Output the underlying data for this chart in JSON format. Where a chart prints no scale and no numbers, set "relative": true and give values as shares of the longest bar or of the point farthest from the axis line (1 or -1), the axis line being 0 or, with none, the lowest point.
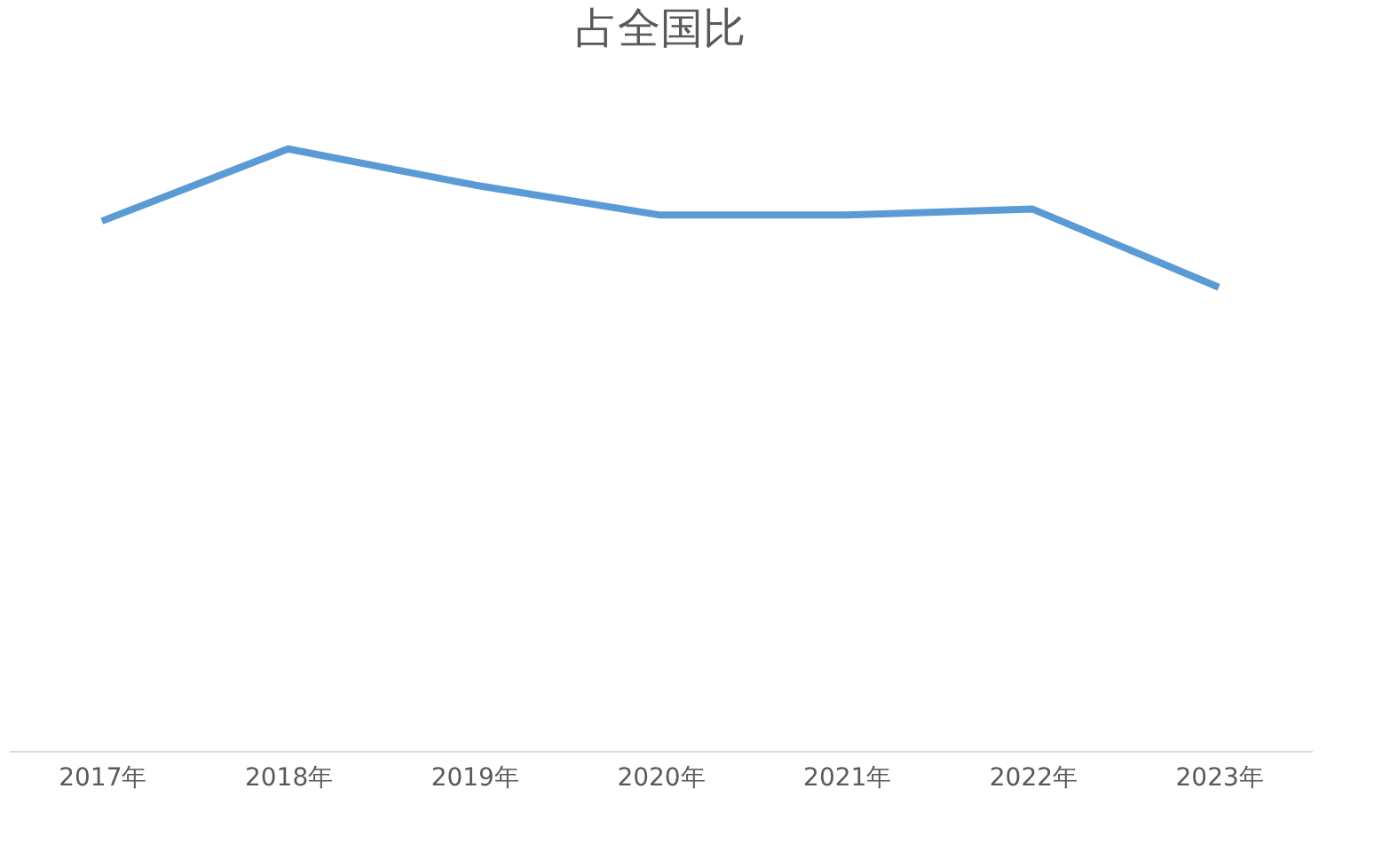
{
  "chart_data": {
    "type": "line",
    "title": "占全国比",
    "relative": true,
    "categories": [
      "2017年",
      "2018年",
      "2019年",
      "2020年",
      "2021年",
      "2022年",
      "2023年"
    ],
    "series": [
      {
        "color": "#5b9bd5",
        "values": [
          0.88,
          1,
          0.94,
          0.89,
          0.89,
          0.9,
          0.77
        ]
      }
    ],
    "legend": false,
    "marker": "none",
    "line_style": "solid"
  }
}
